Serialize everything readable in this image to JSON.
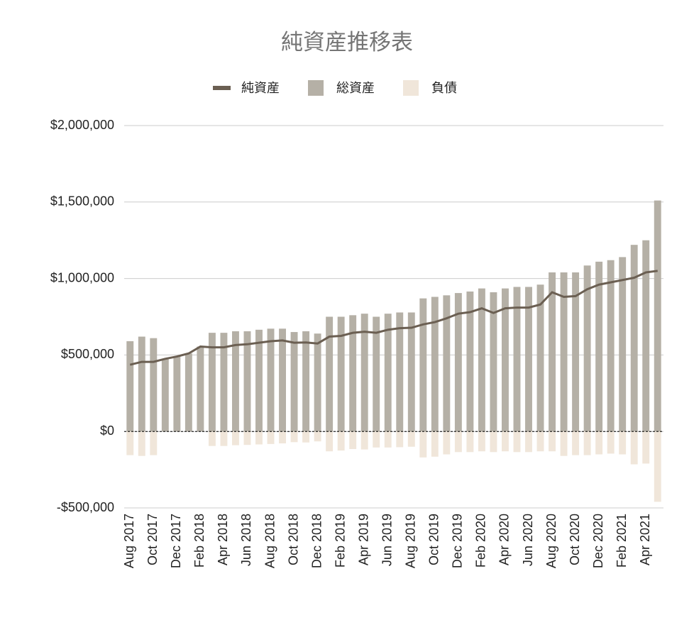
{
  "chart_data": {
    "type": "bar",
    "title": "純資産推移表",
    "categories": [
      "Aug 2017",
      null,
      "Oct 2017",
      null,
      "Dec 2017",
      null,
      "Feb 2018",
      null,
      "Apr 2018",
      null,
      "Jun 2018",
      null,
      "Aug 2018",
      null,
      "Oct 2018",
      null,
      "Dec 2018",
      null,
      "Feb 2019",
      null,
      "Apr 2019",
      null,
      "Jun 2019",
      null,
      "Aug 2019",
      null,
      "Oct 2019",
      null,
      "Dec 2019",
      null,
      "Feb 2020",
      null,
      "Apr 2020",
      null,
      "Jun 2020",
      null,
      "Aug 2020",
      null,
      "Oct 2020",
      null,
      "Dec 2020",
      null,
      "Feb 2021",
      null,
      "Apr 2021",
      null
    ],
    "series": [
      {
        "name": "純資産",
        "type": "line",
        "color": "#6b5f52",
        "values": [
          436000,
          455000,
          455000,
          475000,
          490000,
          510000,
          555000,
          550000,
          550000,
          565000,
          570000,
          580000,
          590000,
          595000,
          580000,
          582000,
          575000,
          620000,
          625000,
          645000,
          652000,
          645000,
          665000,
          675000,
          678000,
          700000,
          715000,
          740000,
          770000,
          780000,
          805000,
          775000,
          805000,
          810000,
          810000,
          830000,
          910000,
          880000,
          885000,
          930000,
          960000,
          975000,
          990000,
          1005000,
          1040000,
          1050000
        ]
      },
      {
        "name": "総資産",
        "type": "bar",
        "color": "#b5b0a6",
        "values": [
          590000,
          620000,
          610000,
          475000,
          490000,
          510000,
          555000,
          645000,
          645000,
          655000,
          655000,
          665000,
          672000,
          672000,
          650000,
          655000,
          640000,
          750000,
          750000,
          760000,
          770000,
          750000,
          770000,
          778000,
          778000,
          870000,
          880000,
          890000,
          905000,
          915000,
          935000,
          910000,
          935000,
          945000,
          945000,
          960000,
          1040000,
          1040000,
          1040000,
          1085000,
          1110000,
          1120000,
          1140000,
          1220000,
          1250000,
          1510000
        ]
      },
      {
        "name": "負債",
        "type": "bar",
        "color": "#f0e6da",
        "values": [
          -155000,
          -160000,
          -155000,
          0,
          0,
          0,
          0,
          -95000,
          -95000,
          -90000,
          -88000,
          -85000,
          -82000,
          -78000,
          -70000,
          -72000,
          -65000,
          -130000,
          -125000,
          -115000,
          -118000,
          -105000,
          -105000,
          -103000,
          -100000,
          -170000,
          -165000,
          -150000,
          -135000,
          -135000,
          -130000,
          -135000,
          -130000,
          -135000,
          -135000,
          -130000,
          -130000,
          -160000,
          -155000,
          -155000,
          -150000,
          -145000,
          -150000,
          -215000,
          -210000,
          -460000
        ]
      }
    ],
    "ylim": [
      -500000,
      2000000
    ],
    "yticks": [
      {
        "value": -500000,
        "label": "-$500,000"
      },
      {
        "value": 0,
        "label": "$0"
      },
      {
        "value": 500000,
        "label": "$500,000"
      },
      {
        "value": 1000000,
        "label": "$1,000,000"
      },
      {
        "value": 1500000,
        "label": "$1,500,000"
      },
      {
        "value": 2000000,
        "label": "$2,000,000"
      }
    ],
    "grid": true,
    "legend": "top"
  }
}
